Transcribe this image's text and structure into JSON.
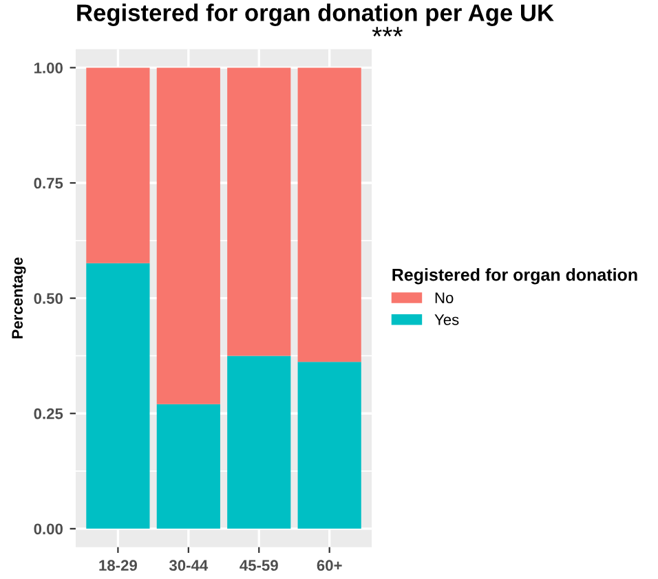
{
  "chart_data": {
    "type": "bar",
    "title": "Registered for organ donation per Age UK",
    "ylabel": "Percentage",
    "legend_title": "Registered for organ donation",
    "categories": [
      "18-29",
      "30-44",
      "45-59",
      "60+"
    ],
    "stacked": true,
    "series": [
      {
        "name": "Yes",
        "color": "#00bfc4",
        "values": [
          0.576,
          0.27,
          0.375,
          0.362
        ]
      },
      {
        "name": "No",
        "color": "#f8766d",
        "values": [
          0.424,
          0.73,
          0.625,
          0.638
        ]
      }
    ],
    "ylim": [
      -0.04,
      1.04
    ],
    "yticks": [
      {
        "value": 0,
        "label": "0.00"
      },
      {
        "value": 0.25,
        "label": "0.25"
      },
      {
        "value": 0.5,
        "label": "0.50"
      },
      {
        "value": 0.75,
        "label": "0.75"
      },
      {
        "value": 1,
        "label": "1.00"
      }
    ],
    "grid": true,
    "legend": "right",
    "annotations": [
      "***"
    ]
  }
}
